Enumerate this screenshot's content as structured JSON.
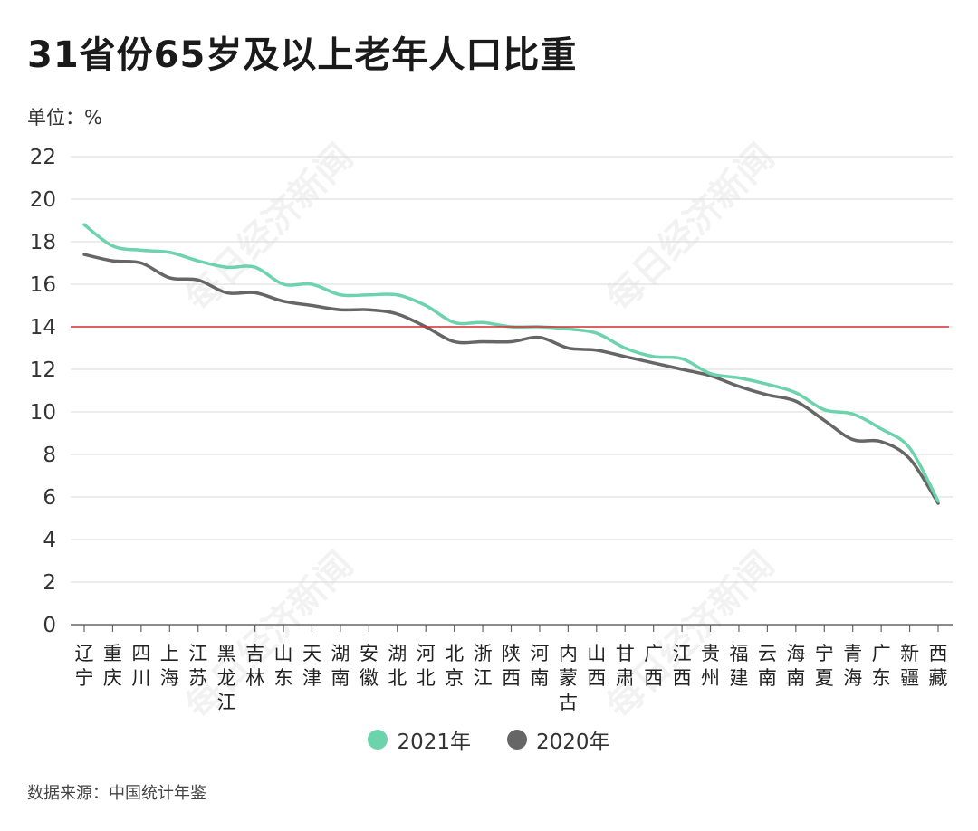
{
  "title": "31省份65岁及以上老年人口比重",
  "unit_label": "单位：%",
  "source": "数据来源：中国统计年鉴",
  "watermark": "每日经济新闻",
  "chart_data": {
    "type": "line",
    "categories": [
      [
        "辽",
        "宁"
      ],
      [
        "重",
        "庆"
      ],
      [
        "四",
        "川"
      ],
      [
        "上",
        "海"
      ],
      [
        "江",
        "苏"
      ],
      [
        "黑",
        "龙",
        "江"
      ],
      [
        "吉",
        "林"
      ],
      [
        "山",
        "东"
      ],
      [
        "天",
        "津"
      ],
      [
        "湖",
        "南"
      ],
      [
        "安",
        "徽"
      ],
      [
        "湖",
        "北"
      ],
      [
        "河",
        "北"
      ],
      [
        "北",
        "京"
      ],
      [
        "浙",
        "江"
      ],
      [
        "陕",
        "西"
      ],
      [
        "河",
        "南"
      ],
      [
        "内",
        "蒙",
        "古"
      ],
      [
        "山",
        "西"
      ],
      [
        "甘",
        "肃"
      ],
      [
        "广",
        "西"
      ],
      [
        "江",
        "西"
      ],
      [
        "贵",
        "州"
      ],
      [
        "福",
        "建"
      ],
      [
        "云",
        "南"
      ],
      [
        "海",
        "南"
      ],
      [
        "宁",
        "夏"
      ],
      [
        "青",
        "海"
      ],
      [
        "广",
        "东"
      ],
      [
        "新",
        "疆"
      ],
      [
        "西",
        "藏"
      ]
    ],
    "y_ticks": [
      "0",
      "2",
      "4",
      "6",
      "8",
      "10",
      "12",
      "14",
      "16",
      "18",
      "20",
      "22"
    ],
    "ylim": [
      0,
      22
    ],
    "reference_line": 14,
    "grid": true,
    "series": [
      {
        "name": "2021年",
        "color": "#6dd3ad",
        "values": [
          18.8,
          17.8,
          17.6,
          17.5,
          17.1,
          16.8,
          16.8,
          16.0,
          16.0,
          15.5,
          15.5,
          15.5,
          15.0,
          14.2,
          14.2,
          14.0,
          14.0,
          13.9,
          13.7,
          13.0,
          12.6,
          12.5,
          11.8,
          11.6,
          11.3,
          10.9,
          10.1,
          9.9,
          9.2,
          8.3,
          5.8
        ]
      },
      {
        "name": "2020年",
        "color": "#666666",
        "values": [
          17.4,
          17.1,
          17.0,
          16.3,
          16.2,
          15.6,
          15.6,
          15.2,
          15.0,
          14.8,
          14.8,
          14.6,
          14.0,
          13.3,
          13.3,
          13.3,
          13.5,
          13.0,
          12.9,
          12.6,
          12.3,
          12.0,
          11.7,
          11.2,
          10.8,
          10.5,
          9.6,
          8.7,
          8.6,
          7.8,
          5.7
        ]
      }
    ],
    "reference_color": "#d32f2f"
  }
}
